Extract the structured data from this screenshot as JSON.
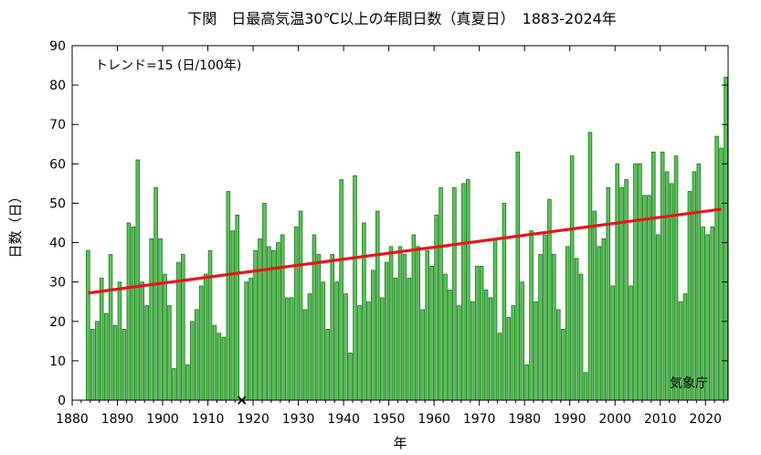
{
  "chart_data": {
    "type": "bar",
    "title": "下関　日最高気温30℃以上の年間日数（真夏日）　1883-2024年",
    "xlabel": "年",
    "ylabel": "日数（日）",
    "trend_text": "トレンド=15 (日/100年)",
    "credit": "気象庁",
    "xlim": [
      1880,
      2025
    ],
    "ylim": [
      0,
      90
    ],
    "xticks": [
      1880,
      1890,
      1900,
      1910,
      1920,
      1930,
      1940,
      1950,
      1960,
      1970,
      1980,
      1990,
      2000,
      2010,
      2020
    ],
    "yticks": [
      0,
      10,
      20,
      30,
      40,
      50,
      60,
      70,
      80,
      90
    ],
    "missing_years": [
      1917
    ],
    "series": [
      {
        "values_by_year": {
          "1883": 38,
          "1884": 18,
          "1885": 20,
          "1886": 31,
          "1887": 22,
          "1888": 37,
          "1889": 19,
          "1890": 30,
          "1891": 18,
          "1892": 45,
          "1893": 44,
          "1894": 61,
          "1895": 30,
          "1896": 24,
          "1897": 41,
          "1898": 54,
          "1899": 41,
          "1900": 32,
          "1901": 24,
          "1902": 8,
          "1903": 35,
          "1904": 37,
          "1905": 9,
          "1906": 20,
          "1907": 23,
          "1908": 29,
          "1909": 32,
          "1910": 38,
          "1911": 19,
          "1912": 17,
          "1913": 16,
          "1914": 53,
          "1915": 43,
          "1916": 47,
          "1918": 30,
          "1919": 31,
          "1920": 38,
          "1921": 41,
          "1922": 50,
          "1923": 39,
          "1924": 38,
          "1925": 40,
          "1926": 42,
          "1927": 26,
          "1928": 26,
          "1929": 44,
          "1930": 48,
          "1931": 23,
          "1932": 27,
          "1933": 42,
          "1934": 37,
          "1935": 30,
          "1936": 18,
          "1937": 37,
          "1938": 30,
          "1939": 56,
          "1940": 27,
          "1941": 12,
          "1942": 57,
          "1943": 24,
          "1944": 45,
          "1945": 25,
          "1946": 33,
          "1947": 48,
          "1948": 26,
          "1949": 35,
          "1950": 39,
          "1951": 31,
          "1952": 39,
          "1953": 37,
          "1954": 31,
          "1955": 42,
          "1956": 39,
          "1957": 23,
          "1958": 38,
          "1959": 34,
          "1960": 47,
          "1961": 54,
          "1962": 32,
          "1963": 28,
          "1964": 54,
          "1965": 24,
          "1966": 55,
          "1967": 56,
          "1968": 25,
          "1969": 34,
          "1970": 34,
          "1971": 28,
          "1972": 26,
          "1973": 41,
          "1974": 17,
          "1975": 50,
          "1976": 21,
          "1977": 24,
          "1978": 63,
          "1979": 30,
          "1980": 9,
          "1981": 43,
          "1982": 25,
          "1983": 37,
          "1984": 42,
          "1985": 51,
          "1986": 37,
          "1987": 23,
          "1988": 18,
          "1989": 39,
          "1990": 62,
          "1991": 36,
          "1992": 32,
          "1993": 7,
          "1994": 68,
          "1995": 48,
          "1996": 39,
          "1997": 41,
          "1998": 54,
          "1999": 29,
          "2000": 60,
          "2001": 54,
          "2002": 56,
          "2003": 29,
          "2004": 60,
          "2005": 60,
          "2006": 52,
          "2007": 52,
          "2008": 63,
          "2009": 42,
          "2010": 63,
          "2011": 58,
          "2012": 55,
          "2013": 62,
          "2014": 25,
          "2015": 27,
          "2016": 53,
          "2017": 58,
          "2018": 60,
          "2019": 44,
          "2020": 42,
          "2021": 44,
          "2022": 67,
          "2023": 64,
          "2024": 82
        }
      }
    ],
    "trend_line": {
      "x": [
        1883.5,
        2023.5
      ],
      "y": [
        27.2,
        48.5
      ]
    },
    "colors": {
      "bar_fill": "#5ec05e",
      "bar_stroke": "#1a7a1a",
      "trend": "#e8141a",
      "missing_marker": "#000000"
    }
  }
}
